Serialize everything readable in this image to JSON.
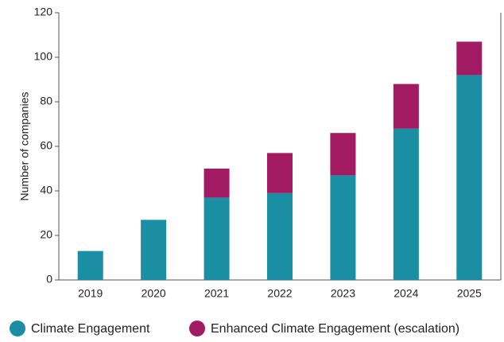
{
  "chart_data": {
    "type": "stacked_bar",
    "y_label": "Number of companies",
    "categories": [
      "2019",
      "2020",
      "2021",
      "2022",
      "2023",
      "2024",
      "2025"
    ],
    "series": [
      {
        "name": "Climate Engagement",
        "color": "#1a8fa3",
        "values": [
          13,
          27,
          37,
          39,
          47,
          68,
          92
        ]
      },
      {
        "name": "Enhanced Climate Engagement (escalation)",
        "color": "#a21a61",
        "values": [
          0,
          0,
          13,
          18,
          19,
          20,
          15
        ]
      }
    ],
    "ylim": [
      0,
      120
    ],
    "yticks": [
      0,
      20,
      40,
      60,
      80,
      100,
      120
    ],
    "grid": false
  }
}
